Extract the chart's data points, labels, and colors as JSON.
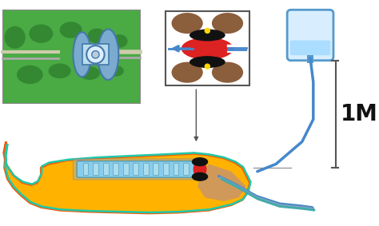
{
  "bg_color": "#ffffff",
  "body_fill": "#FFB300",
  "body_stroke": "#FF5500",
  "body_inner": "#20C8A8",
  "tube_light_blue": "#88CCEE",
  "tube_dark_blue": "#4488CC",
  "tube_blue2": "#6699BB",
  "tube_green": "#44AAAA",
  "device_red": "#DD2222",
  "device_black": "#111111",
  "device_brown": "#8B5E3C",
  "device_yellow": "#FFD700",
  "inset_bg": "#ffffff",
  "inset_border": "#555555",
  "bag_fill": "#D8EEFF",
  "bag_stroke": "#5599CC",
  "bag_water": "#AADDFF",
  "annot_arrow": "#555555",
  "text_1M": "1M",
  "text_fontsize": 20,
  "photo_green_bg": "#4AAA44",
  "photo_green_dark": "#2A7A2A",
  "photo_blue": "#7AAACE",
  "skin_tone": "#C8956A",
  "bracket_color": "#555555"
}
